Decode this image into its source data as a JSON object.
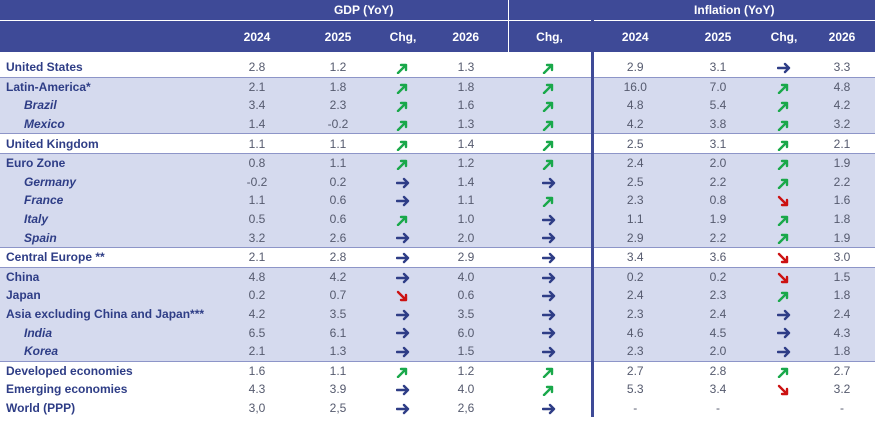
{
  "header": {
    "gdp_title": "GDP (YoY)",
    "inflation_title": "Inflation (YoY)",
    "gdp_cols": [
      "2024",
      "2025",
      "Chg,",
      "2026",
      "Chg,"
    ],
    "inf_cols": [
      "2024",
      "2025",
      "Chg,",
      "2026"
    ]
  },
  "colors": {
    "header": "#3e4a97",
    "band": "#d5daee",
    "up": "#19a84a",
    "flat": "#2e3d86",
    "down": "#cc1111"
  },
  "rows": [
    {
      "label": "United States",
      "sub": false,
      "shade": false,
      "line": false,
      "g24": "2.8",
      "g25": "1.2",
      "gc1": "up",
      "g26": "1.3",
      "gc2": "up",
      "i24": "2.9",
      "i25": "3.1",
      "ic": "flat",
      "i26": "3.3"
    },
    {
      "label": "Latin-America*",
      "sub": false,
      "shade": true,
      "line": true,
      "g24": "2.1",
      "g25": "1.8",
      "gc1": "up",
      "g26": "1.8",
      "gc2": "up",
      "i24": "16.0",
      "i25": "7.0",
      "ic": "up",
      "i26": "4.8"
    },
    {
      "label": "Brazil",
      "sub": true,
      "shade": true,
      "line": false,
      "g24": "3.4",
      "g25": "2.3",
      "gc1": "up",
      "g26": "1.6",
      "gc2": "up",
      "i24": "4.8",
      "i25": "5.4",
      "ic": "up",
      "i26": "4.2"
    },
    {
      "label": "Mexico",
      "sub": true,
      "shade": true,
      "line": false,
      "g24": "1.4",
      "g25": "-0.2",
      "gc1": "up",
      "g26": "1.3",
      "gc2": "up",
      "i24": "4.2",
      "i25": "3.8",
      "ic": "up",
      "i26": "3.2"
    },
    {
      "label": "United Kingdom",
      "sub": false,
      "shade": false,
      "line": true,
      "g24": "1.1",
      "g25": "1.1",
      "gc1": "up",
      "g26": "1.4",
      "gc2": "up",
      "i24": "2.5",
      "i25": "3.1",
      "ic": "up",
      "i26": "2.1"
    },
    {
      "label": "Euro Zone",
      "sub": false,
      "shade": true,
      "line": true,
      "g24": "0.8",
      "g25": "1.1",
      "gc1": "up",
      "g26": "1.2",
      "gc2": "up",
      "i24": "2.4",
      "i25": "2.0",
      "ic": "up",
      "i26": "1.9"
    },
    {
      "label": "Germany",
      "sub": true,
      "shade": true,
      "line": false,
      "g24": "-0.2",
      "g25": "0.2",
      "gc1": "flat",
      "g26": "1.4",
      "gc2": "flat",
      "i24": "2.5",
      "i25": "2.2",
      "ic": "up",
      "i26": "2.2"
    },
    {
      "label": "France",
      "sub": true,
      "shade": true,
      "line": false,
      "g24": "1.1",
      "g25": "0.6",
      "gc1": "flat",
      "g26": "1.1",
      "gc2": "up",
      "i24": "2.3",
      "i25": "0.8",
      "ic": "down",
      "i26": "1.6"
    },
    {
      "label": "Italy",
      "sub": true,
      "shade": true,
      "line": false,
      "g24": "0.5",
      "g25": "0.6",
      "gc1": "up",
      "g26": "1.0",
      "gc2": "flat",
      "i24": "1.1",
      "i25": "1.9",
      "ic": "up",
      "i26": "1.8"
    },
    {
      "label": "Spain",
      "sub": true,
      "shade": true,
      "line": false,
      "g24": "3.2",
      "g25": "2.6",
      "gc1": "flat",
      "g26": "2.0",
      "gc2": "flat",
      "i24": "2.9",
      "i25": "2.2",
      "ic": "up",
      "i26": "1.9"
    },
    {
      "label": "Central Europe **",
      "sub": false,
      "shade": false,
      "line": true,
      "g24": "2.1",
      "g25": "2.8",
      "gc1": "flat",
      "g26": "2.9",
      "gc2": "flat",
      "i24": "3.4",
      "i25": "3.6",
      "ic": "down",
      "i26": "3.0"
    },
    {
      "label": "China",
      "sub": false,
      "shade": true,
      "line": true,
      "g24": "4.8",
      "g25": "4.2",
      "gc1": "flat",
      "g26": "4.0",
      "gc2": "flat",
      "i24": "0.2",
      "i25": "0.2",
      "ic": "down",
      "i26": "1.5"
    },
    {
      "label": "Japan",
      "sub": false,
      "shade": true,
      "line": false,
      "g24": "0.2",
      "g25": "0.7",
      "gc1": "down",
      "g26": "0.6",
      "gc2": "flat",
      "i24": "2.4",
      "i25": "2.3",
      "ic": "up",
      "i26": "1.8"
    },
    {
      "label": "Asia excluding China and Japan***",
      "sub": false,
      "shade": true,
      "line": false,
      "g24": "4.2",
      "g25": "3.5",
      "gc1": "flat",
      "g26": "3.5",
      "gc2": "flat",
      "i24": "2.3",
      "i25": "2.4",
      "ic": "flat",
      "i26": "2.4"
    },
    {
      "label": "India",
      "sub": true,
      "shade": true,
      "line": false,
      "g24": "6.5",
      "g25": "6.1",
      "gc1": "flat",
      "g26": "6.0",
      "gc2": "flat",
      "i24": "4.6",
      "i25": "4.5",
      "ic": "flat",
      "i26": "4.3"
    },
    {
      "label": "Korea",
      "sub": true,
      "shade": true,
      "line": false,
      "g24": "2.1",
      "g25": "1.3",
      "gc1": "flat",
      "g26": "1.5",
      "gc2": "flat",
      "i24": "2.3",
      "i25": "2.0",
      "ic": "flat",
      "i26": "1.8"
    },
    {
      "label": "Developed economies",
      "sub": false,
      "shade": false,
      "line": true,
      "g24": "1.6",
      "g25": "1.1",
      "gc1": "up",
      "g26": "1.2",
      "gc2": "up",
      "i24": "2.7",
      "i25": "2.8",
      "ic": "up",
      "i26": "2.7"
    },
    {
      "label": "Emerging economies",
      "sub": false,
      "shade": false,
      "line": false,
      "g24": "4.3",
      "g25": "3.9",
      "gc1": "flat",
      "g26": "4.0",
      "gc2": "up",
      "i24": "5.3",
      "i25": "3.4",
      "ic": "down",
      "i26": "3.2"
    },
    {
      "label": "World (PPP)",
      "sub": false,
      "shade": false,
      "line": false,
      "g24": "3,0",
      "g25": "2,5",
      "gc1": "flat",
      "g26": "2,6",
      "gc2": "flat",
      "i24": "-",
      "i25": "-",
      "ic": "",
      "i26": "-"
    }
  ]
}
